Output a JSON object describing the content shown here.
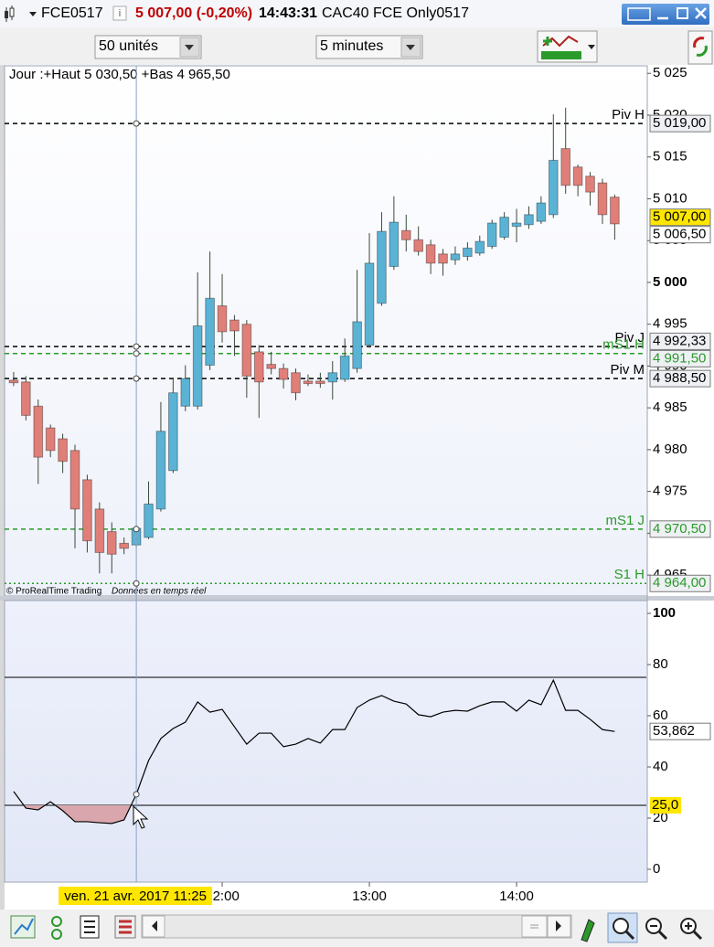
{
  "window": {
    "symbol": "FCE0517",
    "price": "5 007,00 (-0,20%)",
    "time": "14:43:31",
    "description": "CAC40 FCE Only0517"
  },
  "toolbar": {
    "units": "50 unités",
    "period": "5 minutes"
  },
  "chart_data": [
    {
      "type": "candlestick",
      "header": "Jour :+Haut 5 030,50 +Bas 4 965,50",
      "credit": "© ProRealTime Trading",
      "credit_note": "Données en temps réel",
      "up_color": "#5ab3d4",
      "down_color": "#e07f78",
      "x": [
        635,
        640,
        645,
        650,
        655,
        660,
        665,
        670,
        675,
        680,
        685,
        690,
        695,
        700,
        705,
        710,
        715,
        720,
        725,
        730,
        735,
        740,
        745,
        750,
        755,
        760,
        765,
        770,
        775,
        780,
        785,
        790,
        795,
        800,
        805,
        810,
        815,
        820,
        825,
        830,
        835,
        840,
        845,
        850,
        855,
        860,
        865,
        870,
        875,
        880
      ],
      "open": [
        4988.3,
        4988.1,
        4985.2,
        4982.6,
        4981.3,
        4979.9,
        4976.4,
        4972.9,
        4970.2,
        4968.8,
        4968.6,
        4969.5,
        4972.9,
        4977.5,
        4985.2,
        4985.2,
        4990.1,
        4997.2,
        4995.5,
        4995.0,
        4991.7,
        4990.2,
        4989.7,
        4989.2,
        4988.2,
        4988.2,
        4988.1,
        4988.4,
        4989.7,
        4992.5,
        4997.5,
        5001.9,
        5006.2,
        5005.1,
        5004.5,
        5003.4,
        5002.7,
        5003.1,
        5003.5,
        5004.3,
        5005.4,
        5006.7,
        5006.9,
        5007.3,
        5008.1,
        5016.0,
        5013.8,
        5012.7,
        5011.9,
        5010.2
      ],
      "high": [
        4989.3,
        4988.8,
        4986.0,
        4983.0,
        4981.9,
        4980.6,
        4977.0,
        4973.7,
        4971.3,
        4969.5,
        4971.0,
        4976.2,
        4985.7,
        4988.4,
        4990.1,
        5001.2,
        5003.7,
        5001.0,
        4996.1,
        4995.5,
        4992.5,
        4991.7,
        4990.3,
        4989.7,
        4989.0,
        4989.2,
        4990.6,
        4993.3,
        5001.5,
        5005.9,
        5008.4,
        5010.3,
        5008.1,
        5006.7,
        5005.1,
        5004.0,
        5004.3,
        5004.8,
        5005.6,
        5007.5,
        5008.4,
        5008.8,
        5009.1,
        5010.3,
        5020.1,
        5020.9,
        5014.1,
        5013.2,
        5012.4,
        5010.5
      ],
      "low": [
        4987.6,
        4983.5,
        4975.9,
        4979.1,
        4977.2,
        4968.2,
        4967.7,
        4965.2,
        4965.2,
        4967.5,
        4968.2,
        4969.3,
        4972.6,
        4977.2,
        4984.6,
        4984.8,
        4989.5,
        4992.8,
        4991.2,
        4986.2,
        4983.8,
        4989.0,
        4987.3,
        4985.9,
        4987.6,
        4987.4,
        4986.0,
        4988.1,
        4989.2,
        4992.2,
        4997.2,
        5001.5,
        5003.7,
        5003.2,
        5001.0,
        5000.8,
        5002.1,
        5002.6,
        5003.2,
        5004.0,
        5005.1,
        5004.8,
        5006.4,
        5007.0,
        5007.7,
        5010.6,
        5010.3,
        5009.2,
        5007.0,
        5005.1
      ],
      "close": [
        4988.0,
        4984.1,
        4979.1,
        4979.9,
        4978.6,
        4972.9,
        4969.1,
        4967.7,
        4967.5,
        4968.2,
        4970.6,
        4973.5,
        4982.2,
        4986.8,
        4988.5,
        4994.8,
        4998.1,
        4994.1,
        4994.2,
        4988.8,
        4988.1,
        4989.7,
        4988.4,
        4986.8,
        4987.9,
        4987.9,
        4989.2,
        4991.2,
        4995.3,
        5002.3,
        5006.1,
        5007.2,
        5005.1,
        5003.7,
        5002.3,
        5002.3,
        5003.4,
        5004.1,
        5004.9,
        5007.1,
        5007.8,
        5007.1,
        5008.1,
        5009.5,
        5014.6,
        5011.6,
        5011.6,
        5010.8,
        5008.1,
        5007.0
      ],
      "xlim": [
        631.3,
        892.9
      ],
      "xticks": [
        {
          "value": 720,
          "label": "12:00"
        },
        {
          "value": 780,
          "label": "13:00"
        },
        {
          "value": 840,
          "label": "14:00"
        }
      ],
      "ylim": [
        4962.5,
        5025.9
      ],
      "yticks": [
        {
          "value": 4965,
          "label": "4 965"
        },
        {
          "value": 4970,
          "label": "4 970"
        },
        {
          "value": 4975,
          "label": "4 975"
        },
        {
          "value": 4980,
          "label": "4 980"
        },
        {
          "value": 4985,
          "label": "4 985"
        },
        {
          "value": 4990,
          "label": "4 990"
        },
        {
          "value": 4995,
          "label": "4 995"
        },
        {
          "value": 5000,
          "label": "5 000",
          "bold": true
        },
        {
          "value": 5005,
          "label": "5 005"
        },
        {
          "value": 5010,
          "label": "5 010"
        },
        {
          "value": 5015,
          "label": "5 015"
        },
        {
          "value": 5020,
          "label": "5 020"
        },
        {
          "value": 5025,
          "label": "5 025"
        }
      ],
      "levels": [
        {
          "name": "Piv H",
          "value": 5019.0,
          "value_label": "5 019,00",
          "color": "#000000",
          "style": "dashed"
        },
        {
          "name": "Piv J",
          "value": 4992.33,
          "value_label": "4 992,33",
          "color": "#000000",
          "style": "dashed"
        },
        {
          "name": "mS1 H",
          "value": 4991.5,
          "value_label": "4 991,50",
          "color": "#2a9a2a",
          "style": "dashed"
        },
        {
          "name": "Piv M",
          "value": 4988.5,
          "value_label": "4 988,50",
          "color": "#000000",
          "style": "dashed"
        },
        {
          "name": "mS1 J",
          "value": 4970.5,
          "value_label": "4 970,50",
          "color": "#2a9a2a",
          "style": "dashed"
        },
        {
          "name": "S1 H",
          "value": 4964.0,
          "value_label": "4 964,00",
          "color": "#2a9a2a",
          "style": "dotted"
        }
      ],
      "price_marks": [
        {
          "value": 5007.0,
          "value_label": "5 007,00",
          "color": "#ffe600"
        },
        {
          "value": 5006.5,
          "value_label": "5 006,50",
          "color": "#ffffff"
        }
      ],
      "crosshair": {
        "value": 685,
        "label": "ven. 21 avr. 2017 11:25"
      }
    },
    {
      "type": "line",
      "color": "#000000",
      "fill_below_color": "#d9a6ad",
      "x": [
        635,
        640,
        645,
        650,
        655,
        660,
        665,
        670,
        675,
        680,
        685,
        690,
        695,
        700,
        705,
        710,
        715,
        720,
        725,
        730,
        735,
        740,
        745,
        750,
        755,
        760,
        765,
        770,
        775,
        780,
        785,
        790,
        795,
        800,
        805,
        810,
        815,
        820,
        825,
        830,
        835,
        840,
        845,
        850,
        855,
        860,
        865,
        870,
        875,
        880
      ],
      "values": [
        30.4,
        23.9,
        23.2,
        26.4,
        22.9,
        18.6,
        18.6,
        18.2,
        17.9,
        19.3,
        29.3,
        42.5,
        51.1,
        55.0,
        57.5,
        65.4,
        61.4,
        62.5,
        55.7,
        48.9,
        53.2,
        53.2,
        47.9,
        48.9,
        51.1,
        49.3,
        54.6,
        54.6,
        63.2,
        66.1,
        67.9,
        65.7,
        64.6,
        60.4,
        59.6,
        61.4,
        62.1,
        61.8,
        63.9,
        65.4,
        65.4,
        61.8,
        66.1,
        64.3,
        73.9,
        62.1,
        62.1,
        58.6,
        54.6,
        53.862
      ],
      "value_labels": [
        null,
        null,
        null,
        null,
        null,
        null,
        null,
        null,
        null,
        null,
        null,
        null,
        null,
        null,
        null,
        null,
        null,
        null,
        null,
        null,
        null,
        null,
        null,
        null,
        null,
        null,
        null,
        null,
        null,
        null,
        null,
        null,
        null,
        null,
        null,
        null,
        null,
        null,
        null,
        null,
        null,
        null,
        null,
        null,
        null,
        null,
        null,
        null,
        null,
        "53,862"
      ],
      "xlim": [
        631.3,
        892.9
      ],
      "ylim": [
        -5,
        105
      ],
      "yticks": [
        0,
        20,
        40,
        60,
        80,
        100
      ],
      "levels": [
        {
          "value": 75
        },
        {
          "value": 25,
          "label": "25,0",
          "color": "#ffe600"
        }
      ]
    }
  ]
}
